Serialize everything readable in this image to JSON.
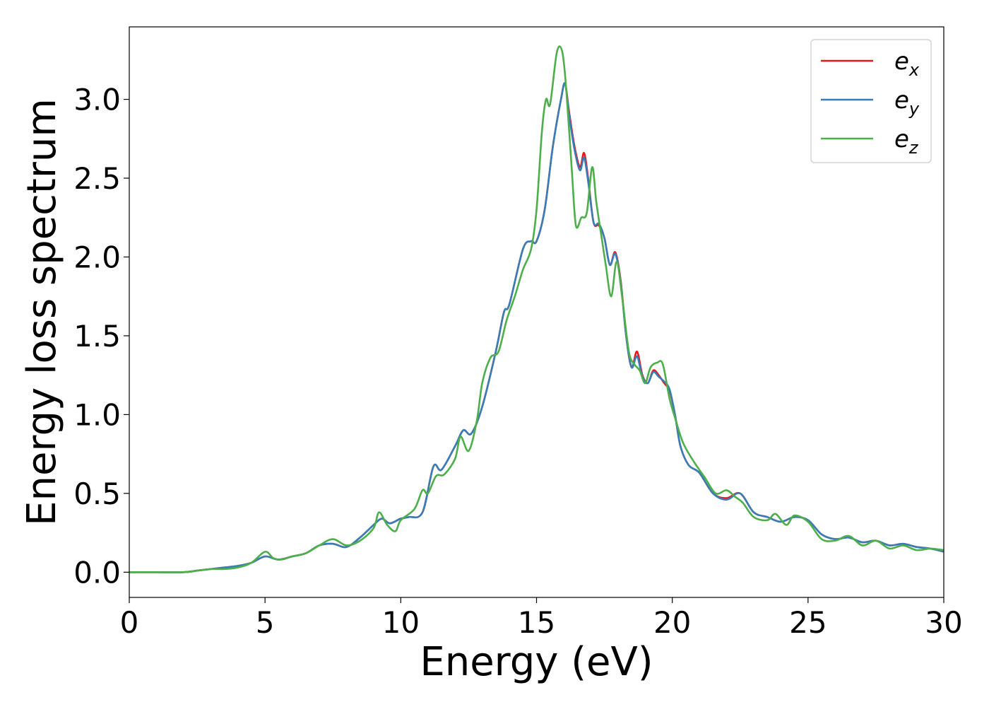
{
  "chart_data": {
    "type": "line",
    "title": "",
    "xlabel": "Energy (eV)",
    "ylabel": "Energy loss spectrum",
    "xlim": [
      0,
      30
    ],
    "ylim": [
      -0.16,
      3.46
    ],
    "xticks": [
      0,
      5,
      10,
      15,
      20,
      25,
      30
    ],
    "xtick_labels": [
      "0",
      "5",
      "10",
      "15",
      "20",
      "25",
      "30"
    ],
    "yticks": [
      0.0,
      0.5,
      1.0,
      1.5,
      2.0,
      2.5,
      3.0
    ],
    "ytick_labels": [
      "0.0",
      "0.5",
      "1.0",
      "1.5",
      "2.0",
      "2.5",
      "3.0"
    ],
    "grid": false,
    "legend_position": "top-right",
    "series": [
      {
        "name": "e_x",
        "legend_base": "e",
        "legend_sub": "x",
        "color": "#e41a1c",
        "x": [
          0,
          1,
          2,
          2.5,
          3,
          3.5,
          4,
          4.5,
          5,
          5.5,
          6,
          6.5,
          7,
          7.5,
          8,
          8.5,
          9,
          9.3,
          9.6,
          10,
          10.3,
          10.8,
          11.2,
          11.5,
          12,
          12.3,
          12.6,
          13,
          13.5,
          13.8,
          14,
          14.5,
          14.8,
          15,
          15.3,
          15.6,
          15.9,
          16.05,
          16.2,
          16.4,
          16.6,
          16.75,
          16.9,
          17.1,
          17.3,
          17.5,
          17.7,
          17.9,
          18.1,
          18.3,
          18.5,
          18.7,
          18.9,
          19.1,
          19.3,
          19.5,
          19.7,
          19.9,
          20.1,
          20.3,
          20.6,
          21,
          21.5,
          22,
          22.5,
          23,
          23.5,
          24,
          24.5,
          25,
          25.5,
          26,
          26.5,
          27,
          27.5,
          28,
          28.5,
          29,
          29.5,
          30
        ],
        "y": [
          0,
          0,
          0,
          0.01,
          0.02,
          0.03,
          0.04,
          0.06,
          0.1,
          0.08,
          0.1,
          0.12,
          0.17,
          0.18,
          0.16,
          0.22,
          0.3,
          0.34,
          0.31,
          0.34,
          0.35,
          0.38,
          0.67,
          0.65,
          0.8,
          0.9,
          0.88,
          1.05,
          1.4,
          1.65,
          1.7,
          2.05,
          2.1,
          2.1,
          2.3,
          2.7,
          3.0,
          3.1,
          2.92,
          2.7,
          2.57,
          2.66,
          2.5,
          2.22,
          2.2,
          2.12,
          1.95,
          2.03,
          1.85,
          1.5,
          1.3,
          1.4,
          1.25,
          1.2,
          1.28,
          1.25,
          1.2,
          1.15,
          1.0,
          0.8,
          0.68,
          0.63,
          0.5,
          0.47,
          0.5,
          0.38,
          0.35,
          0.32,
          0.35,
          0.33,
          0.24,
          0.21,
          0.22,
          0.19,
          0.2,
          0.17,
          0.18,
          0.16,
          0.15,
          0.13
        ]
      },
      {
        "name": "e_y",
        "legend_base": "e",
        "legend_sub": "y",
        "color": "#377eb8",
        "x": [
          0,
          1,
          2,
          2.5,
          3,
          3.5,
          4,
          4.5,
          5,
          5.5,
          6,
          6.5,
          7,
          7.5,
          8,
          8.5,
          9,
          9.3,
          9.6,
          10,
          10.3,
          10.8,
          11.2,
          11.5,
          12,
          12.3,
          12.6,
          13,
          13.5,
          13.8,
          14,
          14.5,
          14.8,
          15,
          15.3,
          15.6,
          15.9,
          16.05,
          16.2,
          16.4,
          16.6,
          16.75,
          16.9,
          17.1,
          17.3,
          17.5,
          17.7,
          17.9,
          18.1,
          18.3,
          18.5,
          18.7,
          18.9,
          19.1,
          19.3,
          19.5,
          19.7,
          19.9,
          20.1,
          20.3,
          20.6,
          21,
          21.5,
          22,
          22.5,
          23,
          23.5,
          24,
          24.5,
          25,
          25.5,
          26,
          26.5,
          27,
          27.5,
          28,
          28.5,
          29,
          29.5,
          30
        ],
        "y": [
          0,
          0,
          0,
          0.01,
          0.02,
          0.03,
          0.04,
          0.06,
          0.1,
          0.08,
          0.1,
          0.12,
          0.17,
          0.18,
          0.16,
          0.22,
          0.3,
          0.34,
          0.31,
          0.34,
          0.35,
          0.38,
          0.67,
          0.65,
          0.8,
          0.9,
          0.88,
          1.05,
          1.4,
          1.65,
          1.7,
          2.05,
          2.1,
          2.1,
          2.3,
          2.7,
          3.0,
          3.1,
          2.9,
          2.68,
          2.55,
          2.63,
          2.48,
          2.22,
          2.21,
          2.12,
          1.95,
          2.02,
          1.84,
          1.5,
          1.3,
          1.37,
          1.24,
          1.2,
          1.27,
          1.24,
          1.21,
          1.16,
          1.0,
          0.8,
          0.68,
          0.63,
          0.5,
          0.46,
          0.5,
          0.38,
          0.35,
          0.32,
          0.35,
          0.33,
          0.24,
          0.21,
          0.22,
          0.19,
          0.2,
          0.17,
          0.18,
          0.16,
          0.15,
          0.13
        ]
      },
      {
        "name": "e_z",
        "legend_base": "e",
        "legend_sub": "z",
        "color": "#4daf4a",
        "x": [
          0,
          1,
          2,
          2.5,
          3,
          3.5,
          4,
          4.5,
          5,
          5.3,
          5.6,
          6,
          6.5,
          7,
          7.5,
          8,
          8.5,
          9,
          9.2,
          9.5,
          9.8,
          10,
          10.5,
          10.8,
          11,
          11.3,
          11.6,
          12,
          12.2,
          12.5,
          12.8,
          13,
          13.3,
          13.6,
          13.9,
          14.2,
          14.5,
          14.8,
          15,
          15.2,
          15.35,
          15.5,
          15.75,
          15.95,
          16.1,
          16.3,
          16.45,
          16.65,
          16.85,
          17.05,
          17.2,
          17.4,
          17.55,
          17.75,
          17.95,
          18.15,
          18.4,
          18.6,
          18.8,
          19.0,
          19.2,
          19.45,
          19.65,
          19.9,
          20.1,
          20.4,
          20.8,
          21.2,
          21.6,
          22,
          22.3,
          22.6,
          23,
          23.5,
          23.8,
          24.2,
          24.5,
          25,
          25.5,
          26,
          26.5,
          27,
          27.5,
          28,
          28.5,
          29,
          29.5,
          30
        ],
        "y": [
          0,
          0,
          0,
          0.01,
          0.02,
          0.02,
          0.03,
          0.06,
          0.13,
          0.09,
          0.08,
          0.1,
          0.12,
          0.17,
          0.21,
          0.17,
          0.2,
          0.28,
          0.38,
          0.3,
          0.26,
          0.33,
          0.4,
          0.52,
          0.5,
          0.61,
          0.62,
          0.72,
          0.86,
          0.77,
          0.96,
          1.2,
          1.36,
          1.4,
          1.6,
          1.75,
          1.92,
          2.05,
          2.3,
          2.8,
          3.0,
          2.97,
          3.3,
          3.3,
          3.05,
          2.55,
          2.2,
          2.25,
          2.28,
          2.57,
          2.35,
          2.12,
          1.95,
          1.75,
          1.97,
          1.75,
          1.4,
          1.32,
          1.28,
          1.2,
          1.3,
          1.33,
          1.32,
          1.1,
          0.98,
          0.82,
          0.7,
          0.6,
          0.5,
          0.52,
          0.48,
          0.44,
          0.35,
          0.33,
          0.37,
          0.3,
          0.36,
          0.32,
          0.21,
          0.2,
          0.23,
          0.17,
          0.2,
          0.15,
          0.17,
          0.14,
          0.15,
          0.14
        ]
      }
    ]
  }
}
